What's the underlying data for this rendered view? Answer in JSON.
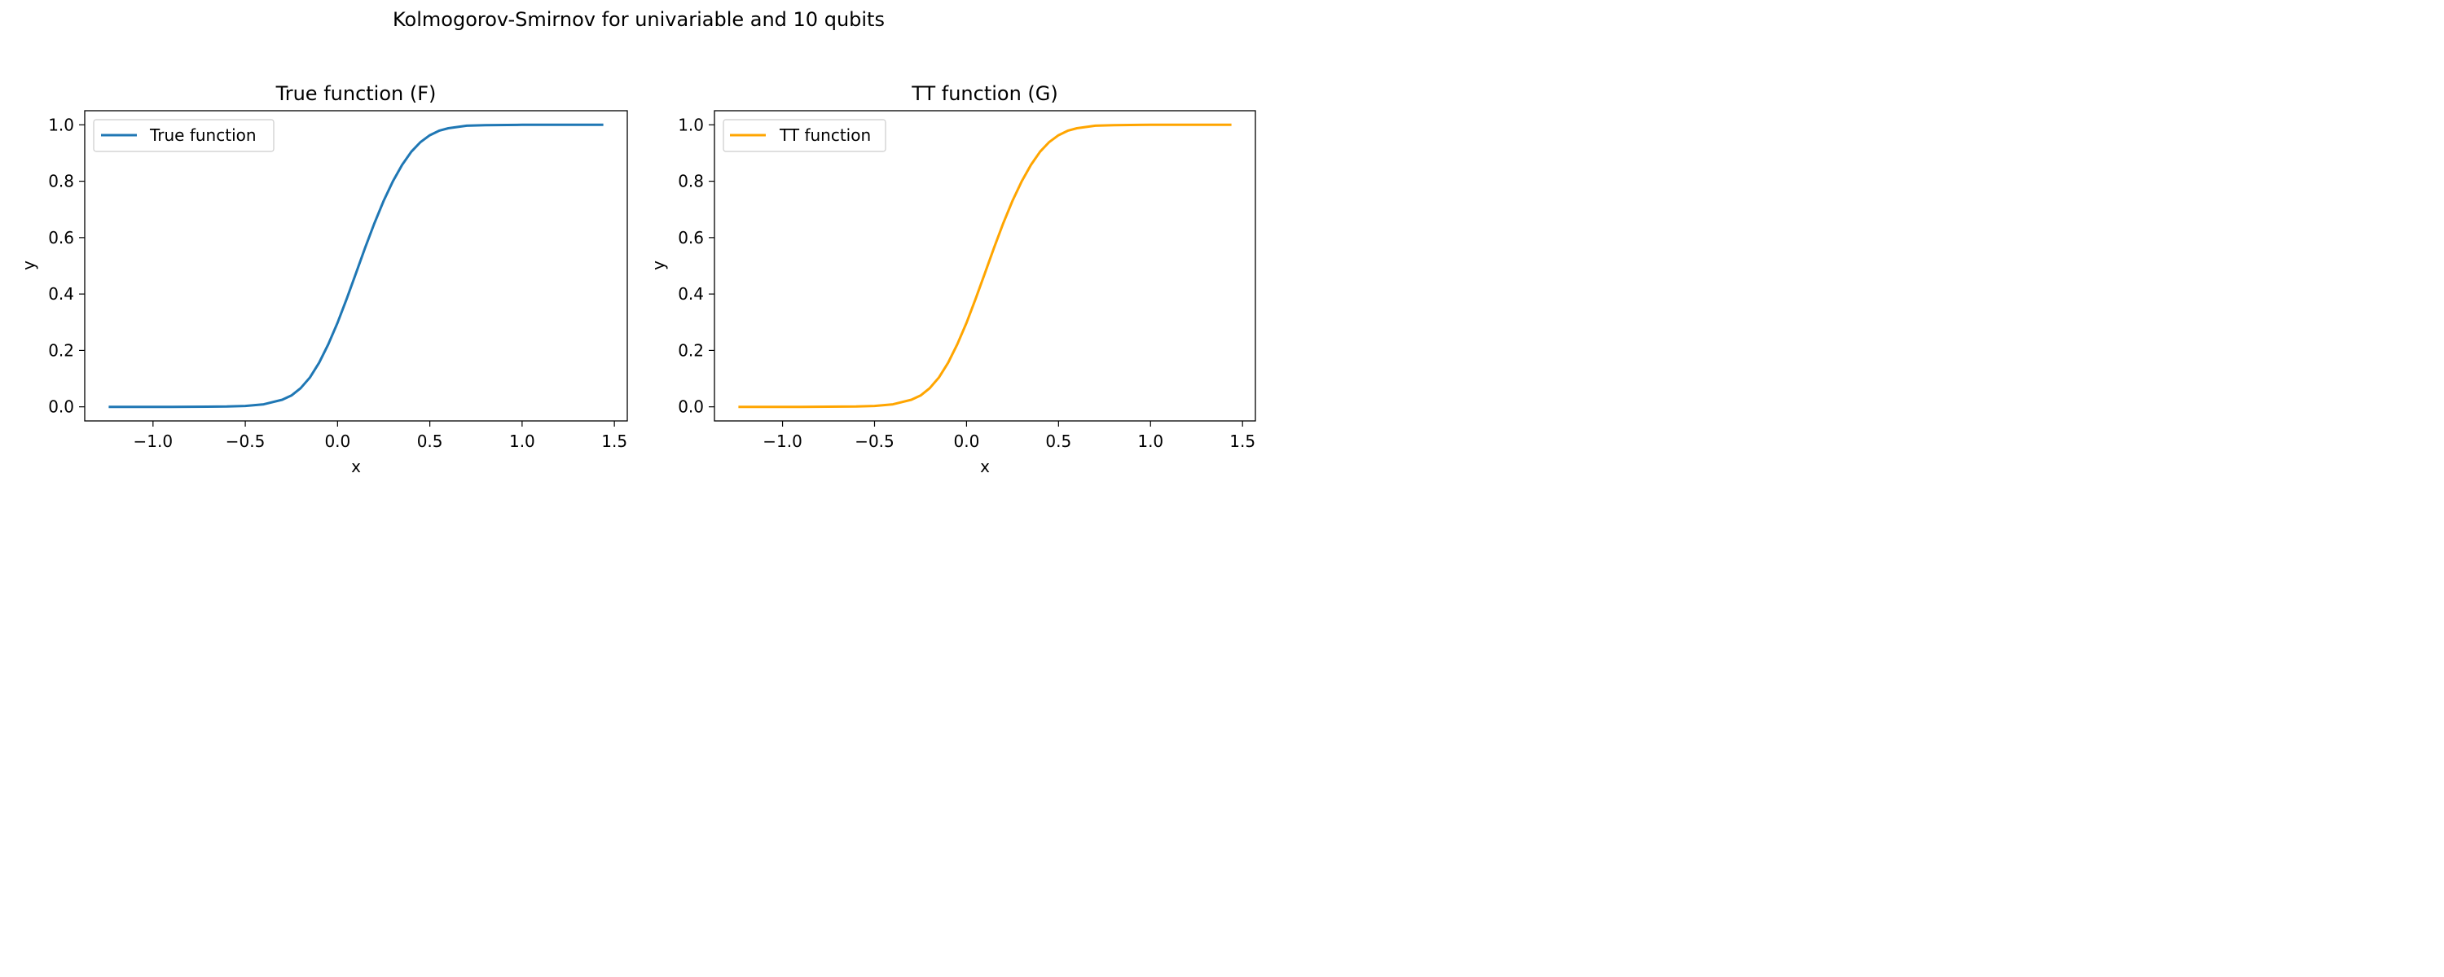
{
  "figure": {
    "suptitle": "Kolmogorov-Smirnov for univariable and 10 qubits"
  },
  "chart_data": [
    {
      "type": "line",
      "title": "True function (F)",
      "xlabel": "x",
      "ylabel": "y",
      "xlim": [
        -1.37,
        1.57
      ],
      "ylim": [
        -0.05,
        1.05
      ],
      "xticks": [
        -1.0,
        -0.5,
        0.0,
        0.5,
        1.0,
        1.5
      ],
      "xtick_labels": [
        "−1.0",
        "−0.5",
        "0.0",
        "0.5",
        "1.0",
        "1.5"
      ],
      "yticks": [
        0.0,
        0.2,
        0.4,
        0.6,
        0.8,
        1.0
      ],
      "ytick_labels": [
        "0.0",
        "0.2",
        "0.4",
        "0.6",
        "0.8",
        "1.0"
      ],
      "legend": "upper-left",
      "grid": false,
      "series": [
        {
          "name": "True function",
          "color": "#1f77b4",
          "x": [
            -1.24,
            -0.9,
            -0.6,
            -0.5,
            -0.4,
            -0.3,
            -0.25,
            -0.2,
            -0.15,
            -0.1,
            -0.05,
            0.0,
            0.05,
            0.1,
            0.15,
            0.2,
            0.25,
            0.3,
            0.35,
            0.4,
            0.45,
            0.5,
            0.55,
            0.6,
            0.7,
            0.8,
            1.0,
            1.2,
            1.44
          ],
          "y": [
            0.0,
            0.0,
            0.001,
            0.003,
            0.009,
            0.025,
            0.04,
            0.066,
            0.104,
            0.156,
            0.222,
            0.298,
            0.384,
            0.474,
            0.565,
            0.652,
            0.731,
            0.8,
            0.858,
            0.905,
            0.939,
            0.963,
            0.979,
            0.988,
            0.997,
            0.999,
            1.0,
            1.0,
            1.0
          ]
        }
      ]
    },
    {
      "type": "line",
      "title": "TT function (G)",
      "xlabel": "x",
      "ylabel": "y",
      "xlim": [
        -1.37,
        1.57
      ],
      "ylim": [
        -0.05,
        1.05
      ],
      "xticks": [
        -1.0,
        -0.5,
        0.0,
        0.5,
        1.0,
        1.5
      ],
      "xtick_labels": [
        "−1.0",
        "−0.5",
        "0.0",
        "0.5",
        "1.0",
        "1.5"
      ],
      "yticks": [
        0.0,
        0.2,
        0.4,
        0.6,
        0.8,
        1.0
      ],
      "ytick_labels": [
        "0.0",
        "0.2",
        "0.4",
        "0.6",
        "0.8",
        "1.0"
      ],
      "legend": "upper-left",
      "grid": false,
      "series": [
        {
          "name": "TT function",
          "color": "#ffa500",
          "x": [
            -1.24,
            -0.9,
            -0.6,
            -0.5,
            -0.4,
            -0.3,
            -0.25,
            -0.2,
            -0.15,
            -0.1,
            -0.05,
            0.0,
            0.05,
            0.1,
            0.15,
            0.2,
            0.25,
            0.3,
            0.35,
            0.4,
            0.45,
            0.5,
            0.55,
            0.6,
            0.7,
            0.8,
            1.0,
            1.2,
            1.44
          ],
          "y": [
            0.0,
            0.0,
            0.001,
            0.003,
            0.009,
            0.025,
            0.04,
            0.066,
            0.104,
            0.156,
            0.222,
            0.298,
            0.384,
            0.474,
            0.565,
            0.652,
            0.731,
            0.8,
            0.858,
            0.905,
            0.939,
            0.963,
            0.979,
            0.988,
            0.997,
            0.999,
            1.0,
            1.0,
            1.0
          ]
        }
      ]
    }
  ]
}
